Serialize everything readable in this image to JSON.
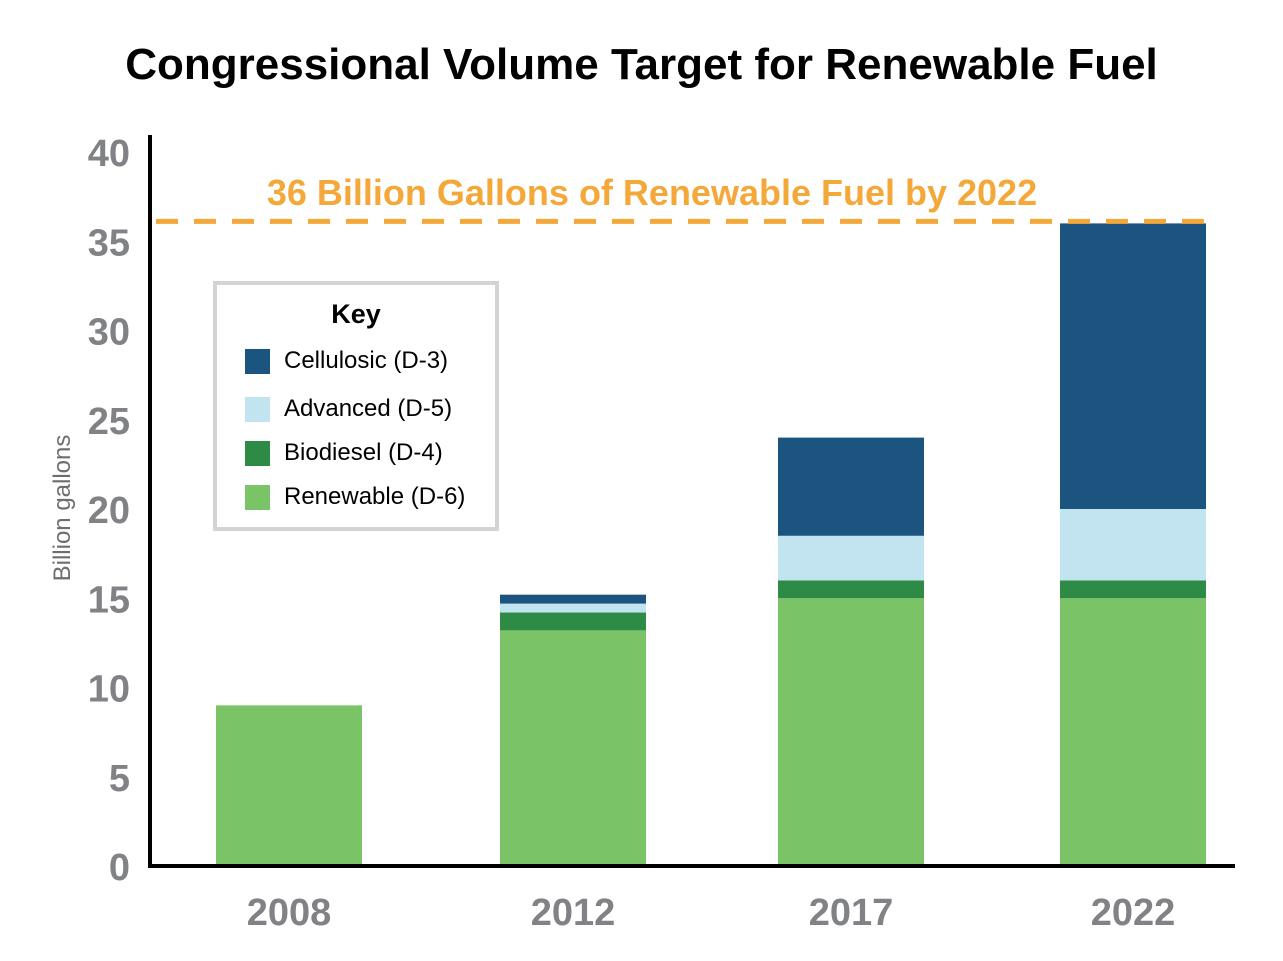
{
  "chart_data": {
    "type": "bar",
    "stacked": true,
    "title": "Congressional Volume Target for Renewable Fuel",
    "xlabel": "",
    "ylabel": "Billion gallons",
    "ylim": [
      0,
      40
    ],
    "yticks": [
      0,
      5,
      10,
      15,
      20,
      25,
      30,
      35,
      40
    ],
    "grid": false,
    "categories": [
      "2008",
      "2012",
      "2017",
      "2022"
    ],
    "series": [
      {
        "name": "Renewable (D-6)",
        "color": "#7ac367",
        "values": [
          9.0,
          13.2,
          15.0,
          15.0
        ]
      },
      {
        "name": "Biodiesel (D-4)",
        "color": "#2e8b45",
        "values": [
          0,
          1.0,
          1.0,
          1.0
        ]
      },
      {
        "name": "Advanced (D-5)",
        "color": "#c2e4f1",
        "values": [
          0,
          0.5,
          2.5,
          4.0
        ]
      },
      {
        "name": "Cellulosic (D-3)",
        "color": "#1b547e",
        "values": [
          0,
          0.5,
          5.5,
          16.0
        ]
      }
    ],
    "target_line": {
      "value": 36,
      "label": "36 Billion Gallons of Renewable Fuel by 2022",
      "color": "#f5a83a",
      "style": "dashed"
    },
    "legend": {
      "title": "Key",
      "placement": "top-left",
      "order": [
        "Cellulosic (D-3)",
        "Advanced (D-5)",
        "Biodiesel (D-4)",
        "Renewable (D-6)"
      ]
    }
  }
}
